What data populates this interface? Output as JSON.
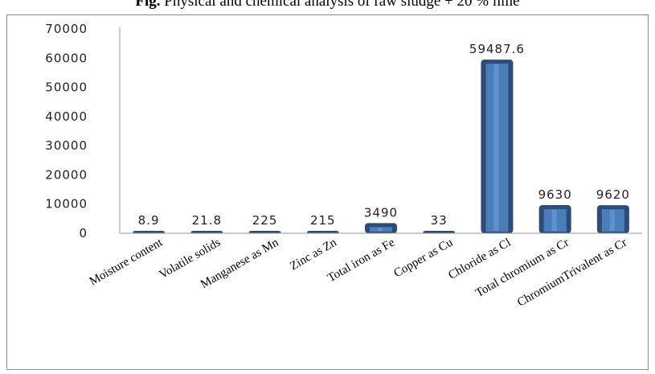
{
  "caption": {
    "prefix": "Fig.",
    "text": "Physical and chemical analysis of raw sludge + 20 % lime"
  },
  "chart_data": {
    "type": "bar",
    "title": "",
    "xlabel": "",
    "ylabel": "",
    "categories": [
      "Moisture content",
      "Volatile solids",
      "Manganese as Mn",
      "Zinc as Zn",
      "Total iron as Fe",
      "Copper as Cu",
      "Chloride as Cl",
      "Total chromium as Cr",
      "ChromiumTrivalent as Cr"
    ],
    "values": [
      8.9,
      21.8,
      225,
      215,
      3490,
      33,
      59487.6,
      9630,
      9620
    ],
    "data_labels": [
      "8.9",
      "21.8",
      "225",
      "215",
      "3490",
      "33",
      "59487.6",
      "9630",
      "9620"
    ],
    "ylim": [
      0,
      70000
    ],
    "yticks": [
      "0",
      "10000",
      "20000",
      "30000",
      "40000",
      "50000",
      "60000",
      "70000"
    ],
    "grid": false,
    "legend": "none",
    "colors": {
      "bar_fill": "#4a7ebb",
      "bar_edge": "#2c4d7a",
      "bar_highlight": "#6a9bd8",
      "axis": "#9a9a9a"
    }
  }
}
